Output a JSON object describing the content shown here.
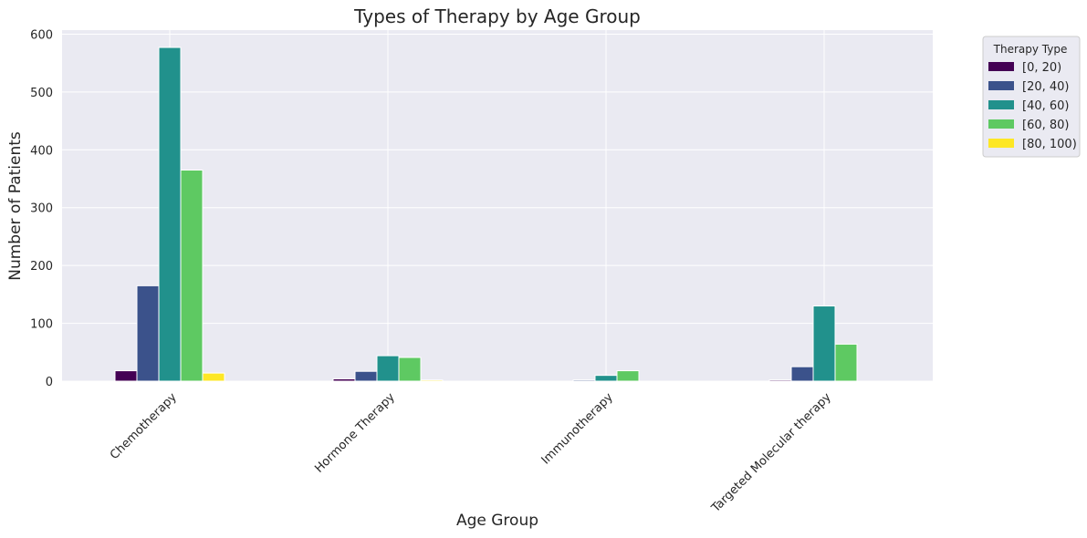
{
  "chart_data": {
    "type": "bar",
    "title": "Types of Therapy by Age Group",
    "xlabel": "Age Group",
    "ylabel": "Number of Patients",
    "categories": [
      "Chemotherapy",
      "Hormone Therapy",
      "Immunotherapy",
      "Targeted Molecular therapy"
    ],
    "series": [
      {
        "name": "[0, 20)",
        "color": "#440154",
        "values": [
          18,
          4,
          0,
          2
        ]
      },
      {
        "name": "[20, 40)",
        "color": "#3b528b",
        "values": [
          165,
          17,
          2,
          25
        ]
      },
      {
        "name": "[40, 60)",
        "color": "#21918c",
        "values": [
          577,
          44,
          10,
          130
        ]
      },
      {
        "name": "[60, 80)",
        "color": "#5ec962",
        "values": [
          365,
          41,
          18,
          64
        ]
      },
      {
        "name": "[80, 100)",
        "color": "#fde725",
        "values": [
          14,
          2,
          0,
          0
        ]
      }
    ],
    "ylim": [
      0,
      607
    ],
    "yticks": [
      0,
      100,
      200,
      300,
      400,
      500,
      600
    ],
    "grid": true,
    "legend": {
      "title": "Therapy Type",
      "placement": "outside-top-right"
    },
    "background": "#eaeaf2"
  }
}
